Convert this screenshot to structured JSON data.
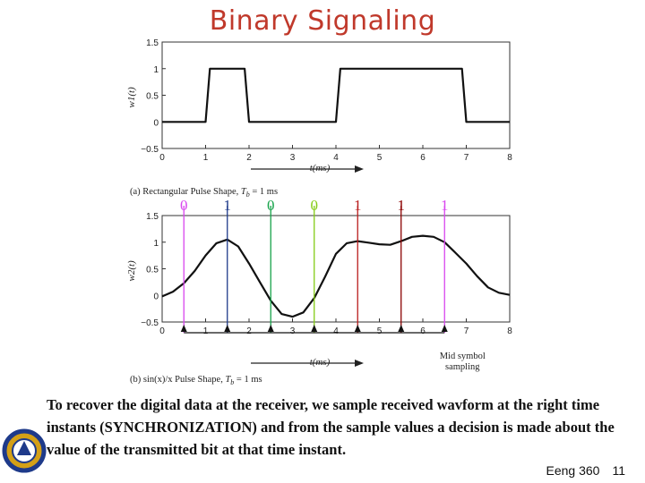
{
  "slide": {
    "title": "Binary Signaling",
    "title_color": "#c0392b",
    "body": "To recover the digital data at the receiver, we sample received wavform at the right time instants (SYNCHRONIZATION) and from the sample values a decision is made about the value of the transmitted bit at that time instant.",
    "footer_course": "Eeng 360",
    "footer_page": "11"
  },
  "chart_data": [
    {
      "type": "line",
      "title": "",
      "caption_prefix": "(a) Rectangular Pulse Shape, ",
      "caption_math": "T_b = 1 ms",
      "xlabel": "t(ms)",
      "ylabel": "w1(t)",
      "xlim": [
        0,
        8
      ],
      "ylim": [
        -0.5,
        1.5
      ],
      "xticks": [
        "0",
        "1",
        "2",
        "3",
        "4",
        "5",
        "6",
        "7",
        "8"
      ],
      "yticks": [
        "1.5",
        "1",
        "0.5",
        "0",
        "−0.5"
      ],
      "series": [
        {
          "x": [
            0,
            1,
            1.1,
            1.9,
            2,
            4,
            4.1,
            6.9,
            7,
            8
          ],
          "y": [
            0,
            0,
            1,
            1,
            0,
            0,
            1,
            1,
            0,
            0
          ]
        }
      ]
    },
    {
      "type": "line",
      "title": "",
      "caption_prefix": "(b) sin(x)/x Pulse Shape, ",
      "caption_math": "T_b = 1 ms",
      "xlabel": "t(ms)",
      "ylabel": "w2(t)",
      "xlim": [
        0,
        8
      ],
      "ylim": [
        -0.5,
        1.5
      ],
      "xticks": [
        "0",
        "1",
        "2",
        "3",
        "4",
        "5",
        "6",
        "7",
        "8"
      ],
      "yticks": [
        "1.5",
        "1",
        "0.5",
        "0",
        "−0.5"
      ],
      "series": [
        {
          "x": [
            0,
            0.25,
            0.5,
            0.75,
            1,
            1.25,
            1.5,
            1.75,
            2,
            2.25,
            2.5,
            2.75,
            3,
            3.25,
            3.5,
            3.75,
            4,
            4.25,
            4.5,
            4.75,
            5,
            5.25,
            5.5,
            5.75,
            6,
            6.25,
            6.5,
            6.75,
            7,
            7.25,
            7.5,
            7.75,
            8
          ],
          "y": [
            -0.02,
            0.07,
            0.23,
            0.46,
            0.75,
            0.98,
            1.05,
            0.92,
            0.6,
            0.25,
            -0.1,
            -0.35,
            -0.4,
            -0.32,
            -0.05,
            0.35,
            0.78,
            0.98,
            1.02,
            0.99,
            0.96,
            0.95,
            1.02,
            1.1,
            1.12,
            1.1,
            1.0,
            0.8,
            0.6,
            0.36,
            0.15,
            0.05,
            0.01
          ]
        }
      ],
      "sample_times": [
        0.5,
        1.5,
        2.5,
        3.5,
        4.5,
        5.5,
        6.5
      ],
      "sample_bits": [
        "0",
        "1",
        "0",
        "0",
        "1",
        "1",
        "1"
      ],
      "sample_colors": [
        "#d946ef",
        "#1e3a8a",
        "#16a34a",
        "#84cc16",
        "#b91c1c",
        "#8b0000",
        "#d946ef"
      ],
      "sample_annotation": "Mid symbol sampling"
    }
  ]
}
